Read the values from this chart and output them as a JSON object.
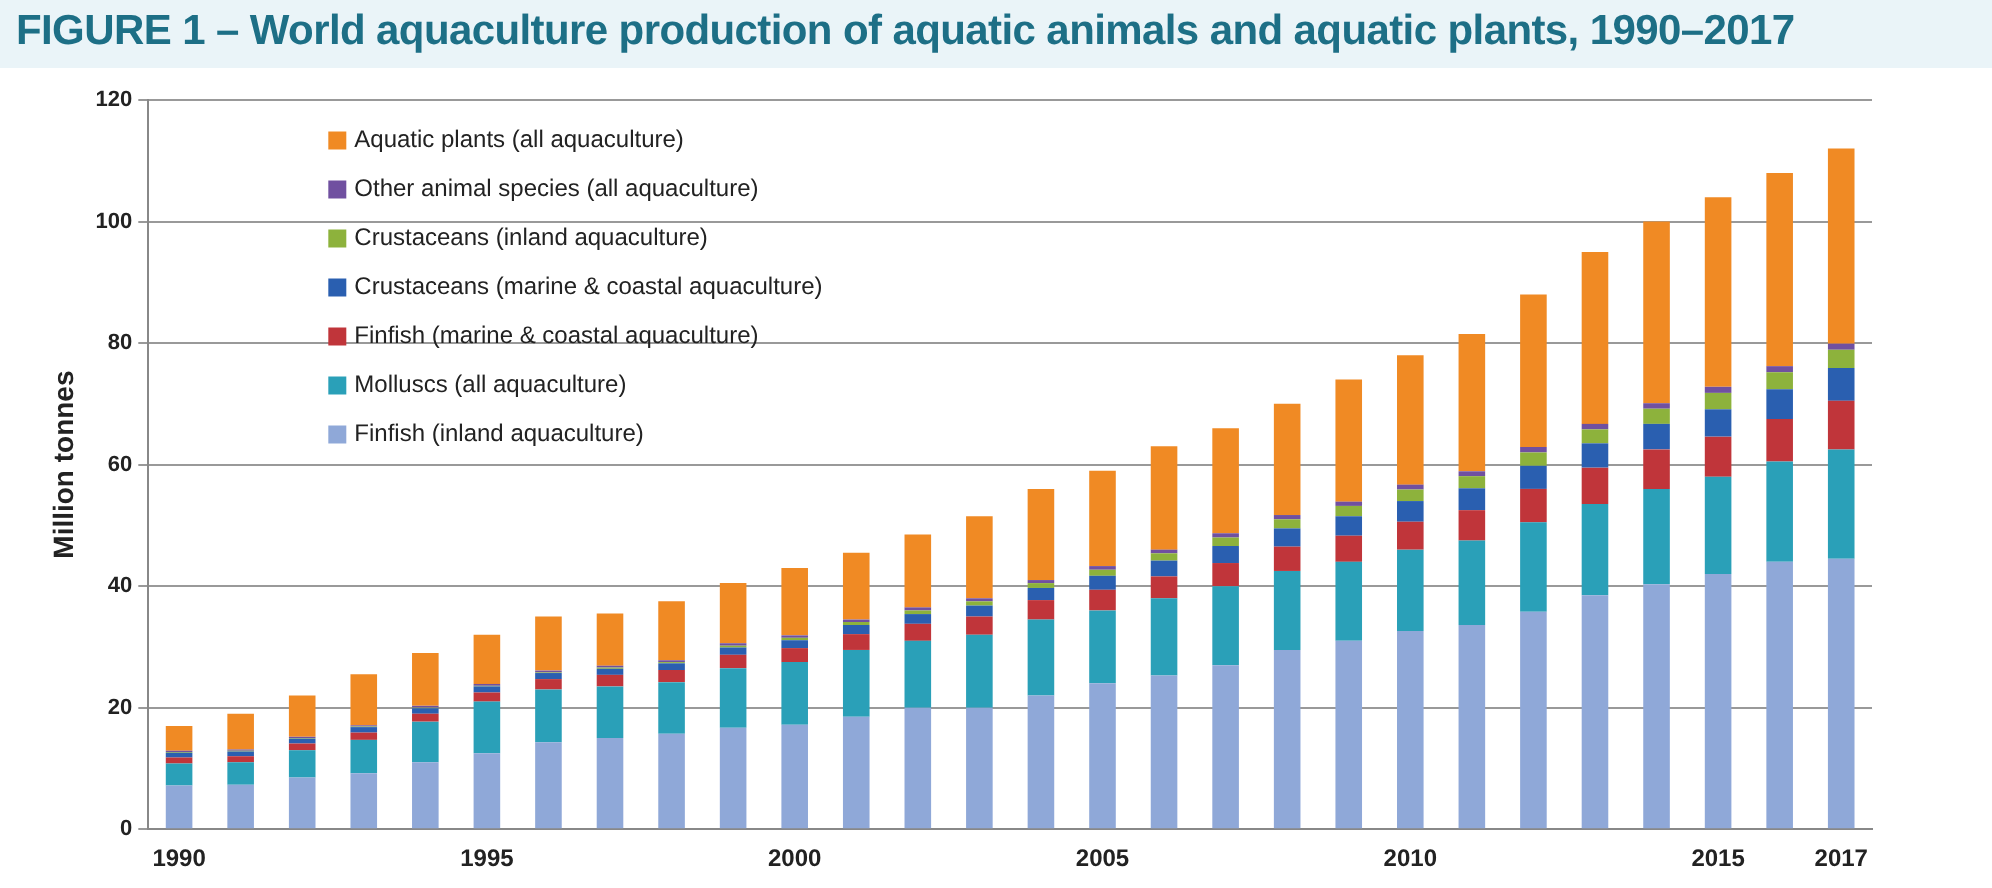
{
  "chart_data": {
    "type": "bar",
    "title": "FIGURE 1 – World aquaculture production of aquatic animals and aquatic plants, 1990–2017",
    "ylabel": "Million tonnes",
    "stacked": true,
    "grid": "y",
    "legend": "top left",
    "categories": [
      "1990",
      null,
      null,
      null,
      null,
      "1995",
      null,
      null,
      null,
      null,
      "2000",
      null,
      null,
      null,
      null,
      "2005",
      null,
      null,
      null,
      null,
      "2010",
      null,
      null,
      null,
      null,
      "2015",
      null,
      "2017"
    ],
    "ylim": [
      0,
      120
    ],
    "yticks": [
      0,
      20,
      40,
      60,
      80,
      100,
      120
    ],
    "series": [
      {
        "name": "Finfish (inland aquaculture)",
        "color": "#8fa8d8",
        "values": [
          7.2,
          7.3,
          8.5,
          9.2,
          11,
          12.5,
          14.3,
          15,
          15.7,
          16.7,
          17.2,
          18.5,
          20,
          20,
          22,
          24,
          25.3,
          27,
          29.5,
          31,
          32.6,
          33.6,
          35.8,
          38.5,
          40.3,
          42,
          44,
          44.5
        ]
      },
      {
        "name": "Molluscs (all aquaculture)",
        "color": "#2aa0b8",
        "values": [
          3.6,
          3.7,
          4.5,
          5.5,
          6.7,
          8.5,
          8.7,
          8.5,
          8.5,
          9.8,
          10.3,
          11,
          11,
          12,
          12.5,
          12,
          12.7,
          13,
          13,
          13,
          13.4,
          13.9,
          14.7,
          15,
          15.7,
          16,
          16.5,
          18
        ]
      },
      {
        "name": "Finfish (marine & coastal aquaculture)",
        "color": "#c0353a",
        "values": [
          1,
          1,
          1.1,
          1.2,
          1.3,
          1.5,
          1.7,
          1.9,
          2,
          2.2,
          2.3,
          2.6,
          2.8,
          3,
          3.2,
          3.4,
          3.6,
          3.8,
          4,
          4.3,
          4.6,
          5,
          5.5,
          6,
          6.5,
          6.6,
          7,
          8
        ]
      },
      {
        "name": "Crustaceans (marine & coastal aquaculture)",
        "color": "#2a5fb0",
        "values": [
          0.8,
          0.8,
          0.8,
          0.9,
          0.9,
          1,
          1,
          1,
          1.1,
          1.2,
          1.3,
          1.5,
          1.6,
          1.8,
          2,
          2.3,
          2.6,
          2.8,
          3,
          3.2,
          3.4,
          3.6,
          3.8,
          4,
          4.2,
          4.5,
          4.9,
          5.4
        ]
      },
      {
        "name": "Crustaceans (inland aquaculture)",
        "color": "#8db23c",
        "values": [
          0.1,
          0.1,
          0.1,
          0.1,
          0.1,
          0.1,
          0.1,
          0.2,
          0.2,
          0.3,
          0.4,
          0.5,
          0.6,
          0.7,
          0.8,
          1,
          1.2,
          1.4,
          1.5,
          1.7,
          1.9,
          2,
          2.2,
          2.3,
          2.5,
          2.7,
          2.8,
          3
        ]
      },
      {
        "name": "Other animal species (all aquaculture)",
        "color": "#7050a0",
        "values": [
          0.2,
          0.2,
          0.2,
          0.2,
          0.3,
          0.3,
          0.3,
          0.3,
          0.3,
          0.4,
          0.4,
          0.4,
          0.5,
          0.5,
          0.5,
          0.6,
          0.6,
          0.7,
          0.7,
          0.7,
          0.8,
          0.8,
          0.9,
          0.9,
          0.9,
          1,
          1,
          1
        ]
      },
      {
        "name": "Aquatic plants (all aquaculture)",
        "color": "#f08a24",
        "values": [
          4.1,
          5.9,
          6.8,
          8.4,
          8.7,
          8.1,
          8.9,
          8.6,
          9.7,
          9.9,
          11.1,
          11,
          12,
          13.5,
          15,
          15.7,
          17,
          17.3,
          18.3,
          20.1,
          21.3,
          22.6,
          25.1,
          28.3,
          29.9,
          31.2,
          31.8,
          32.1
        ]
      }
    ]
  }
}
